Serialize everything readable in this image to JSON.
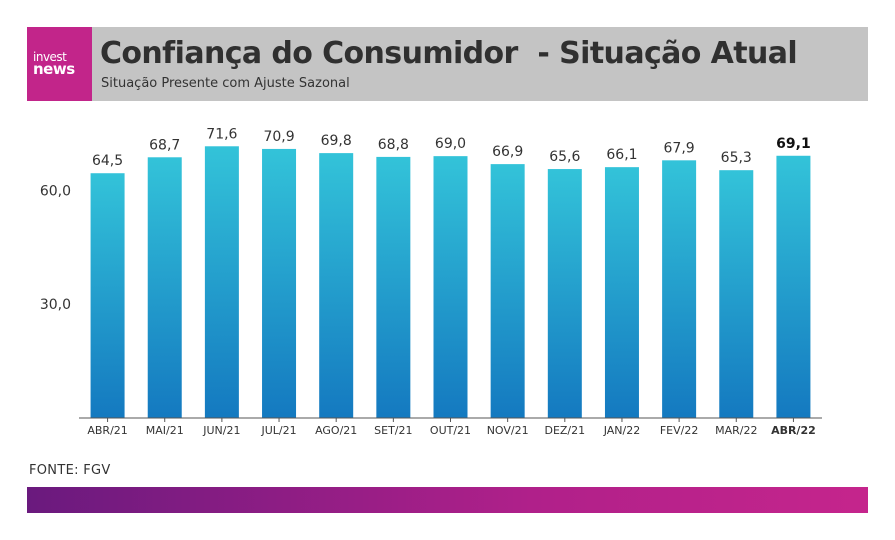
{
  "brand": {
    "logo_top": "invest",
    "logo_bottom": "news",
    "watermark": "investnews",
    "colors": {
      "logo_bg": "#c2258a",
      "header_bg": "#c4c4c4",
      "footer_start": "#6a1a7e",
      "footer_end": "#c5258c"
    }
  },
  "header": {
    "title": "Confiança do Consumidor  - Situação Atual",
    "subtitle": "Situação Presente com Ajuste Sazonal"
  },
  "source": "FONTE: FGV",
  "chart_data": {
    "type": "bar",
    "title": "Confiança do Consumidor  - Situação Atual",
    "subtitle": "Situação Presente com Ajuste Sazonal",
    "xlabel": "",
    "ylabel": "",
    "categories": [
      "ABR/21",
      "MAI/21",
      "JUN/21",
      "JUL/21",
      "AGO/21",
      "SET/21",
      "OUT/21",
      "NOV/21",
      "DEZ/21",
      "JAN/22",
      "FEV/22",
      "MAR/22",
      "ABR/22"
    ],
    "values": [
      64.5,
      68.7,
      71.6,
      70.9,
      69.8,
      68.8,
      69.0,
      66.9,
      65.6,
      66.1,
      67.9,
      65.3,
      69.1
    ],
    "value_labels": [
      "64,5",
      "68,7",
      "71,6",
      "70,9",
      "69,8",
      "68,8",
      "69,0",
      "66,9",
      "65,6",
      "66,1",
      "67,9",
      "65,3",
      "69,1"
    ],
    "highlight_last": true,
    "yticks": [
      30,
      60
    ],
    "ytick_labels": [
      "30,0",
      "60,0"
    ],
    "ylim": [
      0,
      75
    ],
    "grid": false,
    "bar_color_top": "#33c3d9",
    "bar_color_bottom": "#1479c0"
  }
}
